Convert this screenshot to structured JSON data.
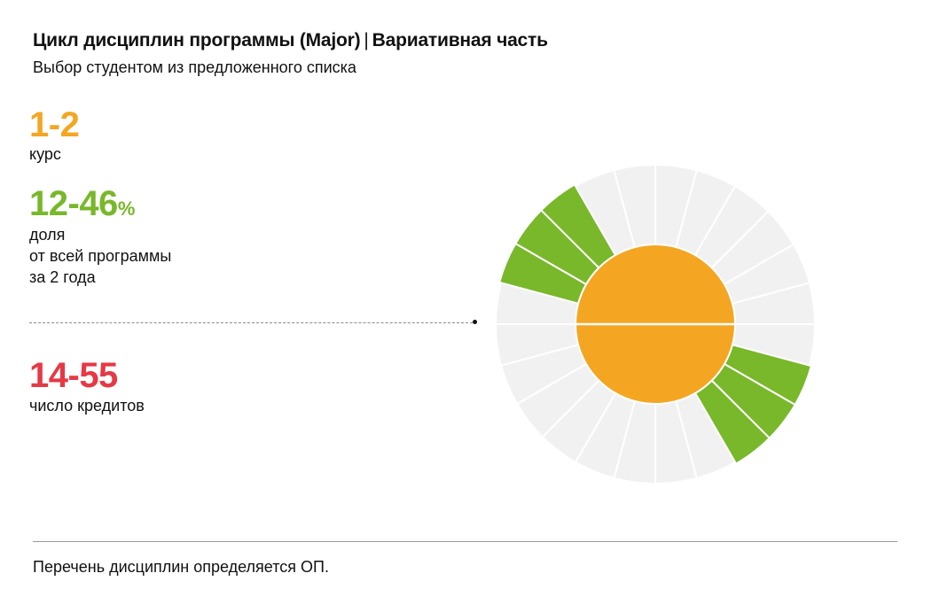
{
  "header": {
    "title_main": "Цикл дисциплин программы (Major)",
    "title_sep": "|",
    "title_part": "Вариативная часть",
    "subtitle": "Выбор студентом из предложенного списка"
  },
  "stats": {
    "course": {
      "value": "1-2",
      "label": "курс",
      "color": "#f4a623"
    },
    "share": {
      "value": "12-46",
      "unit": "%",
      "label_lines": [
        "доля",
        "от всей программы",
        "за 2 года"
      ],
      "color": "#78b82a"
    },
    "credits": {
      "value": "14-55",
      "label": "число кредитов",
      "color": "#e63946"
    }
  },
  "chart_data": {
    "type": "sunburst",
    "segments_total": 24,
    "highlighted_segments": [
      1,
      2,
      3,
      13,
      14,
      15
    ],
    "inner_halves": 2,
    "colors": {
      "highlight": "#78b82a",
      "background_segment": "#f1f1f1",
      "center": "#f4a623",
      "separator": "#ffffff"
    }
  },
  "footer": {
    "note": "Перечень дисциплин определяется ОП."
  }
}
